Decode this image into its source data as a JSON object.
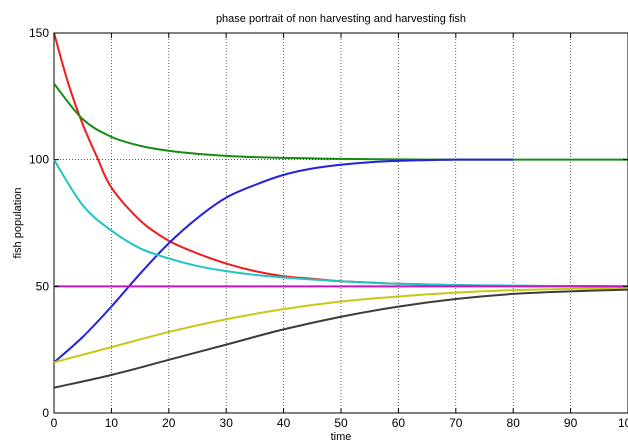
{
  "chart_data": {
    "type": "line",
    "title": "phase portrait of non harvesting and harvesting fish",
    "xlabel": "time",
    "ylabel": "fish population",
    "xlim": [
      0,
      100
    ],
    "ylim": [
      0,
      150
    ],
    "x_ticks": [
      0,
      10,
      20,
      30,
      40,
      50,
      60,
      70,
      80,
      90,
      100
    ],
    "y_ticks": [
      0,
      50,
      100,
      150
    ],
    "grid": true,
    "legend": "none",
    "series": [
      {
        "color": "#ee1c1c",
        "x": [
          0,
          2.5,
          5,
          7.5,
          10,
          15,
          20,
          25,
          30,
          35,
          40,
          45,
          50,
          55,
          60,
          70,
          80,
          90,
          100
        ],
        "y": [
          150,
          130,
          114,
          101,
          89,
          76,
          68,
          63,
          59,
          56,
          54,
          53,
          52,
          51.5,
          51,
          50.5,
          50.2,
          50.1,
          50
        ]
      },
      {
        "color": "#148c14",
        "x": [
          0,
          5,
          10,
          15,
          20,
          25,
          30,
          35,
          40,
          45,
          50,
          60,
          70,
          80,
          90,
          100
        ],
        "y": [
          130,
          116,
          109,
          105.5,
          103.5,
          102.3,
          101.5,
          101,
          100.7,
          100.5,
          100.3,
          100.1,
          100,
          100,
          100,
          100
        ]
      },
      {
        "color": "#2222e0",
        "x": [
          0,
          5,
          10,
          15,
          20,
          25,
          30,
          35,
          40,
          45,
          50,
          55,
          60,
          70,
          80
        ],
        "y": [
          20,
          30,
          42,
          55,
          67,
          77,
          85,
          90,
          94,
          96.5,
          98,
          99,
          99.5,
          100,
          100
        ]
      },
      {
        "color": "#22c4c4",
        "x": [
          0,
          5,
          10,
          15,
          20,
          25,
          30,
          35,
          40,
          50,
          60,
          70,
          80,
          90,
          100
        ],
        "y": [
          100,
          82,
          72,
          65,
          61,
          58,
          56,
          54.5,
          53.5,
          52,
          51,
          50.5,
          50.3,
          50.1,
          50
        ]
      },
      {
        "color": "#c8c814",
        "x": [
          0,
          10,
          20,
          30,
          40,
          50,
          60,
          70,
          80,
          90,
          100
        ],
        "y": [
          20,
          26,
          32,
          37,
          41,
          44,
          46,
          47.5,
          48.5,
          49,
          49.5
        ]
      },
      {
        "color": "#3c3c3c",
        "x": [
          0,
          10,
          20,
          30,
          40,
          50,
          60,
          70,
          80,
          90,
          100
        ],
        "y": [
          10,
          15,
          21,
          27,
          33,
          38,
          42,
          45,
          47,
          48,
          48.7
        ]
      },
      {
        "color": "#c814c8",
        "x": [
          0,
          100
        ],
        "y": [
          50,
          50
        ]
      }
    ]
  }
}
